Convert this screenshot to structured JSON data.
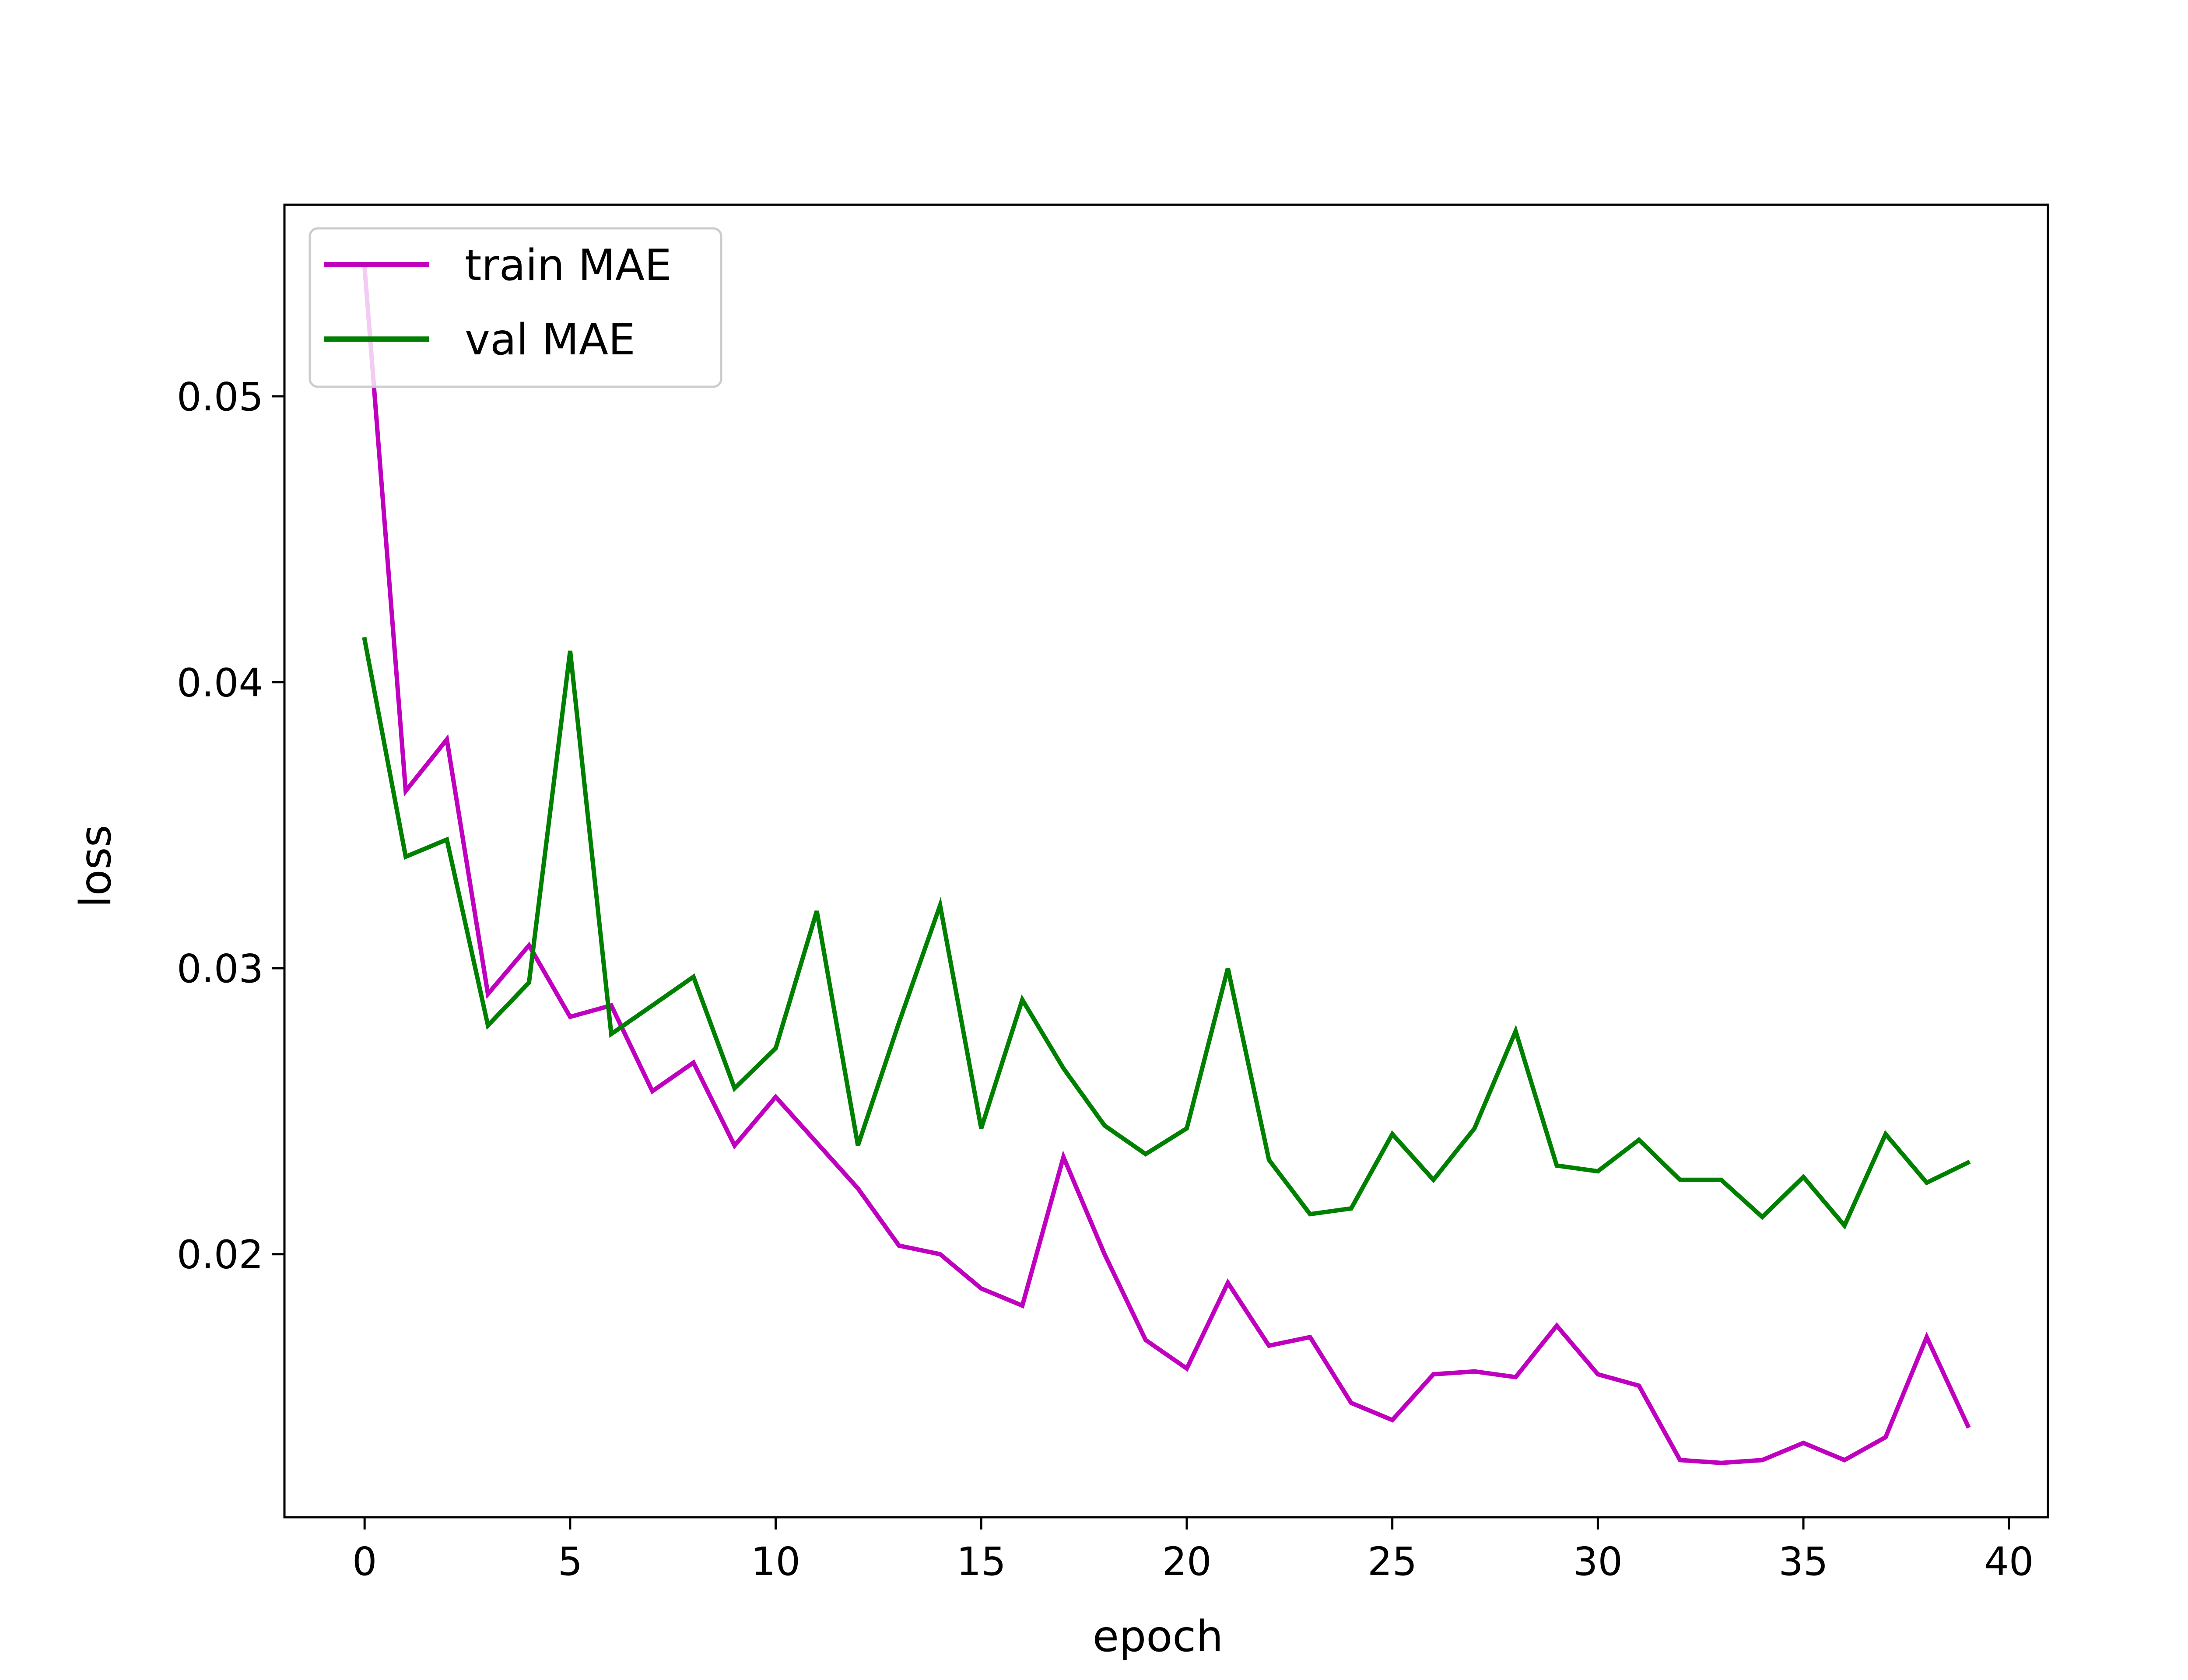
{
  "chart_data": {
    "type": "line",
    "title": "",
    "xlabel": "epoch",
    "ylabel": "loss",
    "xlim": [
      -1.95,
      40.95
    ],
    "ylim": [
      0.0108,
      0.0567
    ],
    "xticks": [
      0,
      5,
      10,
      15,
      20,
      25,
      30,
      35,
      40
    ],
    "yticks": [
      0.02,
      0.03,
      0.04,
      0.05
    ],
    "xtick_labels": [
      "0",
      "5",
      "10",
      "15",
      "20",
      "25",
      "30",
      "35",
      "40"
    ],
    "ytick_labels": [
      "0.02",
      "0.03",
      "0.04",
      "0.05"
    ],
    "grid": false,
    "legend": "upper-left",
    "x": [
      0,
      1,
      2,
      3,
      4,
      5,
      6,
      7,
      8,
      9,
      10,
      11,
      12,
      13,
      14,
      15,
      16,
      17,
      18,
      19,
      20,
      21,
      22,
      23,
      24,
      25,
      26,
      27,
      28,
      29,
      30,
      31,
      32,
      33,
      34,
      35,
      36,
      37,
      38,
      39
    ],
    "series": [
      {
        "name": "train MAE",
        "color": "#bf00bf",
        "values": [
          0.0545,
          0.0362,
          0.038,
          0.0291,
          0.0308,
          0.0283,
          0.0287,
          0.0257,
          0.0267,
          0.0238,
          0.0255,
          0.0239,
          0.0223,
          0.0203,
          0.02,
          0.0188,
          0.0182,
          0.0234,
          0.02,
          0.017,
          0.016,
          0.019,
          0.0168,
          0.0171,
          0.0148,
          0.0142,
          0.0158,
          0.0159,
          0.0157,
          0.0175,
          0.0158,
          0.0154,
          0.0128,
          0.0127,
          0.0128,
          0.0134,
          0.0128,
          0.0136,
          0.0171,
          0.014
        ]
      },
      {
        "name": "val MAE",
        "color": "#008000",
        "values": [
          0.0415,
          0.0339,
          0.0345,
          0.028,
          0.0295,
          0.0411,
          0.0277,
          0.0287,
          0.0297,
          0.0258,
          0.0272,
          0.032,
          0.0238,
          0.0281,
          0.0322,
          0.0244,
          0.0289,
          0.0265,
          0.0245,
          0.0235,
          0.0244,
          0.03,
          0.0233,
          0.0214,
          0.0216,
          0.0242,
          0.0226,
          0.0244,
          0.0278,
          0.0231,
          0.0229,
          0.024,
          0.0226,
          0.0226,
          0.0213,
          0.0227,
          0.021,
          0.0242,
          0.0225,
          0.0232
        ]
      }
    ]
  }
}
